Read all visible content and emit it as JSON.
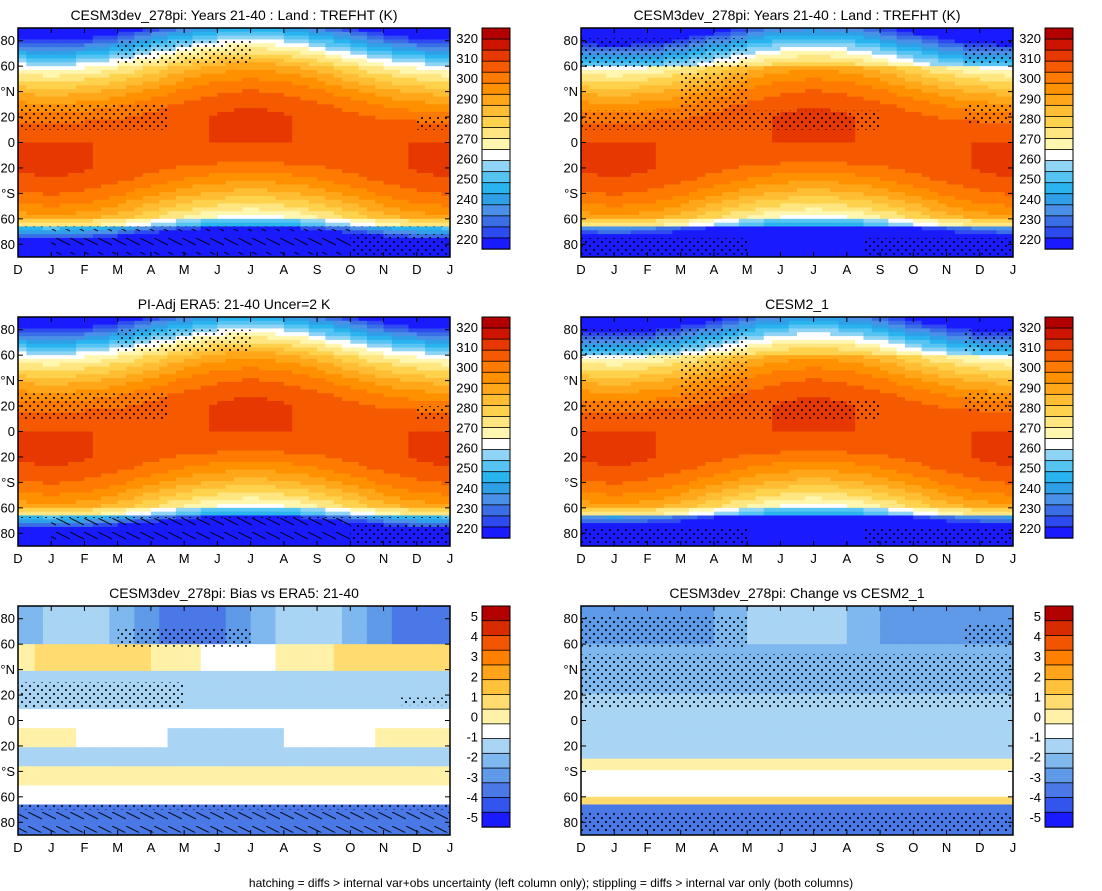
{
  "figure": {
    "footnote": "hatching = diffs > internal var+obs uncertainty (left column only); stippling = diffs > internal var only (both columns)"
  },
  "colors": {
    "temp_scale": [
      "#1a1aff",
      "#2d4bf0",
      "#3a6ee6",
      "#4a8fe8",
      "#2f9fe8",
      "#29b3ef",
      "#55c4f2",
      "#8fd4f4",
      "#ffffff",
      "#fff7b0",
      "#ffe680",
      "#ffd24d",
      "#ffbd33",
      "#ffa619",
      "#ff9000",
      "#ff7a00",
      "#f55a00",
      "#e63800",
      "#cc1400",
      "#b30000"
    ],
    "diff_scale": [
      "#1a1aff",
      "#3355ee",
      "#4a78e6",
      "#5f9ae8",
      "#7fb8ee",
      "#a9d4f4",
      "#ffffff",
      "#fff2a8",
      "#ffdb70",
      "#ffc23a",
      "#ffa31a",
      "#ff7f00",
      "#f25500",
      "#d92b00",
      "#b30000"
    ]
  },
  "chart_data": [
    {
      "type": "heatmap",
      "title": "CESM3dev_278pi: Years 21-40 : Land : TREFHT (K)",
      "x_ticklabels": [
        "D",
        "J",
        "F",
        "M",
        "A",
        "M",
        "J",
        "J",
        "A",
        "S",
        "O",
        "N",
        "D",
        "J"
      ],
      "y_ticklabels": [
        "80",
        "60",
        "°N",
        "20",
        "0",
        "20",
        "°S",
        "60",
        "80"
      ],
      "y_range": [
        -90,
        90
      ],
      "colorbar_ticks": [
        "320",
        "310",
        "300",
        "290",
        "280",
        "270",
        "260",
        "250",
        "240",
        "230",
        "220"
      ],
      "colorbar_range": [
        215,
        325
      ],
      "overlay": "hatching and stippling"
    },
    {
      "type": "heatmap",
      "title": "CESM3dev_278pi: Years 21-40 : Land : TREFHT (K)",
      "x_ticklabels": [
        "D",
        "J",
        "F",
        "M",
        "A",
        "M",
        "J",
        "J",
        "A",
        "S",
        "O",
        "N",
        "D",
        "J"
      ],
      "y_ticklabels": [
        "80",
        "60",
        "°N",
        "20",
        "0",
        "20",
        "°S",
        "60",
        "80"
      ],
      "y_range": [
        -90,
        90
      ],
      "colorbar_ticks": [
        "320",
        "310",
        "300",
        "290",
        "280",
        "270",
        "260",
        "250",
        "240",
        "230",
        "220"
      ],
      "colorbar_range": [
        215,
        325
      ],
      "overlay": "stippling"
    },
    {
      "type": "heatmap",
      "title": "PI-Adj ERA5: 21-40 Uncer=2 K",
      "x_ticklabels": [
        "D",
        "J",
        "F",
        "M",
        "A",
        "M",
        "J",
        "J",
        "A",
        "S",
        "O",
        "N",
        "D",
        "J"
      ],
      "y_ticklabels": [
        "80",
        "60",
        "°N",
        "20",
        "0",
        "20",
        "°S",
        "60",
        "80"
      ],
      "y_range": [
        -90,
        90
      ],
      "colorbar_ticks": [
        "320",
        "310",
        "300",
        "290",
        "280",
        "270",
        "260",
        "250",
        "240",
        "230",
        "220"
      ],
      "colorbar_range": [
        215,
        325
      ],
      "overlay": "hatching and stippling"
    },
    {
      "type": "heatmap",
      "title": "CESM2_1",
      "x_ticklabels": [
        "D",
        "J",
        "F",
        "M",
        "A",
        "M",
        "J",
        "J",
        "A",
        "S",
        "O",
        "N",
        "D",
        "J"
      ],
      "y_ticklabels": [
        "80",
        "60",
        "°N",
        "20",
        "0",
        "20",
        "°S",
        "60",
        "80"
      ],
      "y_range": [
        -90,
        90
      ],
      "colorbar_ticks": [
        "320",
        "310",
        "300",
        "290",
        "280",
        "270",
        "260",
        "250",
        "240",
        "230",
        "220"
      ],
      "colorbar_range": [
        215,
        325
      ],
      "overlay": "stippling"
    },
    {
      "type": "heatmap",
      "title": "CESM3dev_278pi: Bias vs ERA5: 21-40",
      "x_ticklabels": [
        "D",
        "J",
        "F",
        "M",
        "A",
        "M",
        "J",
        "J",
        "A",
        "S",
        "O",
        "N",
        "D",
        "J"
      ],
      "y_ticklabels": [
        "80",
        "60",
        "°N",
        "20",
        "0",
        "20",
        "°S",
        "60",
        "80"
      ],
      "y_range": [
        -90,
        90
      ],
      "colorbar_ticks": [
        "5",
        "4",
        "3",
        "2",
        "1",
        "0",
        "-1",
        "-2",
        "-3",
        "-4",
        "-5"
      ],
      "colorbar_range": [
        -5.5,
        5.5
      ],
      "overlay": "hatching and stippling"
    },
    {
      "type": "heatmap",
      "title": "CESM3dev_278pi: Change vs CESM2_1",
      "x_ticklabels": [
        "D",
        "J",
        "F",
        "M",
        "A",
        "M",
        "J",
        "J",
        "A",
        "S",
        "O",
        "N",
        "D",
        "J"
      ],
      "y_ticklabels": [
        "80",
        "60",
        "°N",
        "20",
        "0",
        "20",
        "°S",
        "60",
        "80"
      ],
      "y_range": [
        -90,
        90
      ],
      "colorbar_ticks": [
        "5",
        "4",
        "3",
        "2",
        "1",
        "0",
        "-1",
        "-2",
        "-3",
        "-4",
        "-5"
      ],
      "colorbar_range": [
        -5.5,
        5.5
      ],
      "overlay": "stippling"
    }
  ]
}
